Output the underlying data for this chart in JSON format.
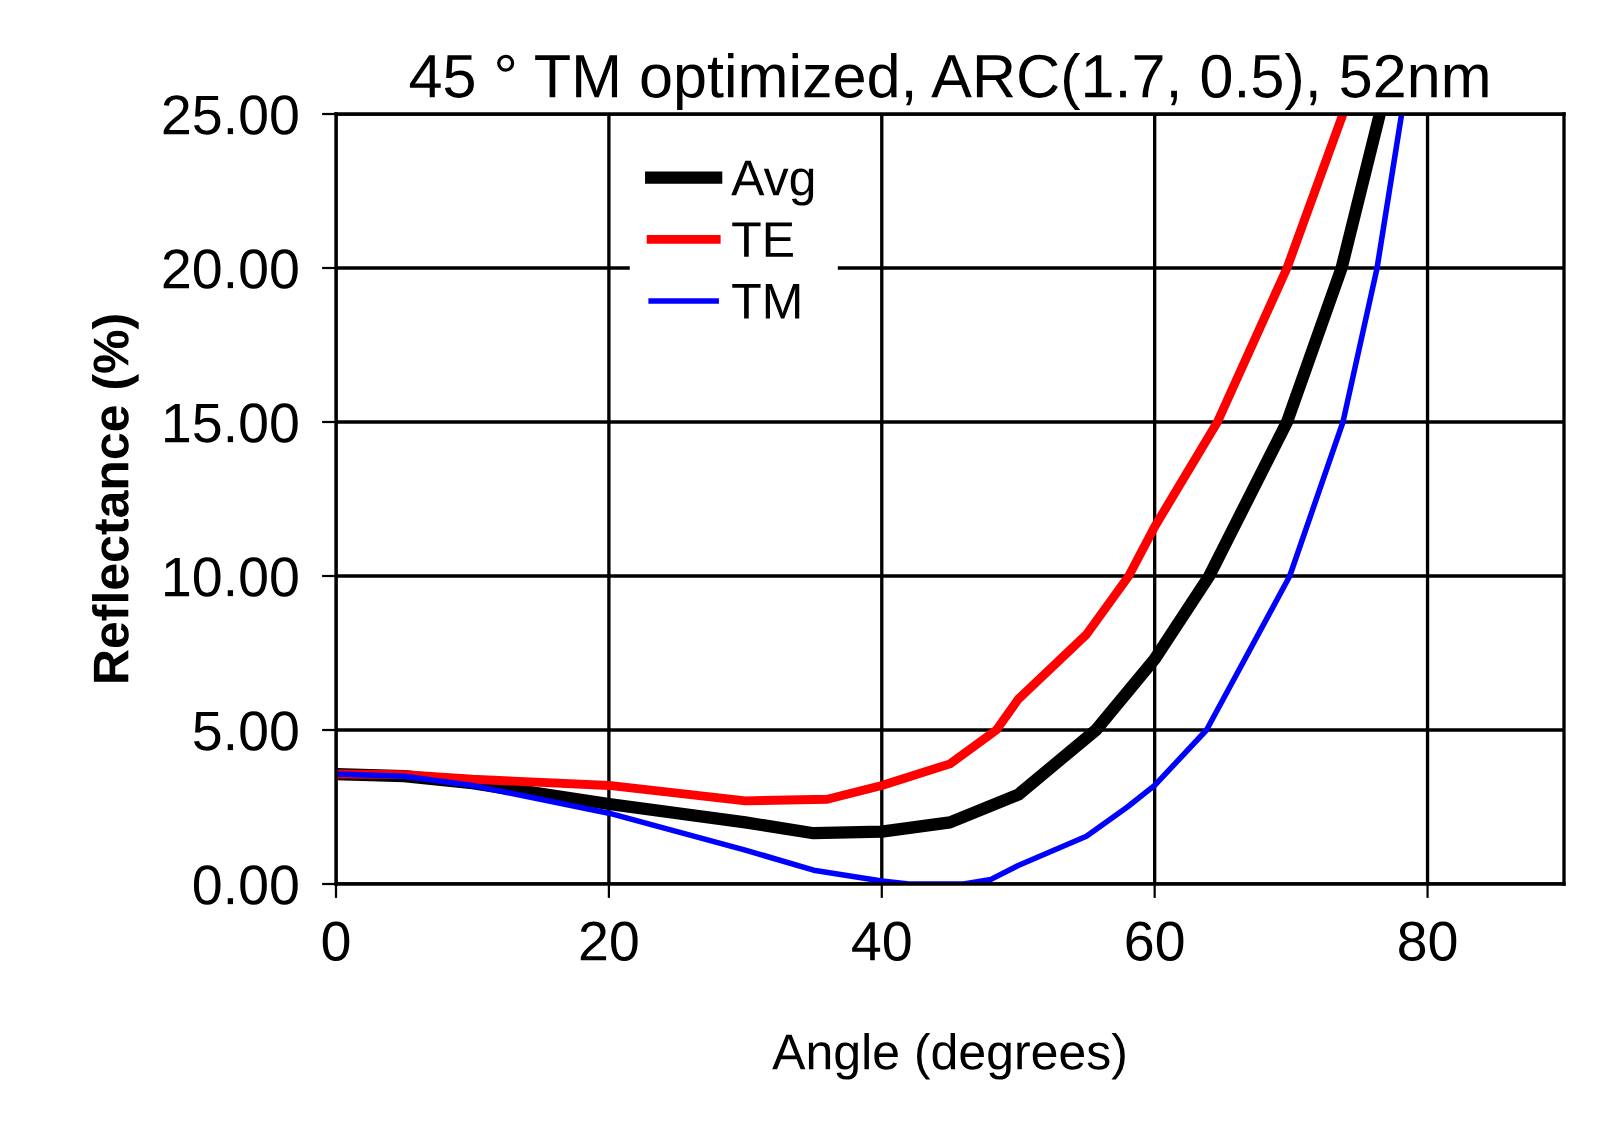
{
  "chart_data": {
    "type": "line",
    "title": "45 ° TM optimized, ARC(1.7, 0.5), 52nm",
    "xlabel": "Angle (degrees)",
    "ylabel": "Reflectance (%)",
    "xlim": [
      0,
      90
    ],
    "xticks": [
      0,
      20,
      40,
      60,
      80
    ],
    "ylim": [
      0,
      25
    ],
    "yticks": [
      {
        "value": 0,
        "label": "0.00"
      },
      {
        "value": 5,
        "label": "5.00"
      },
      {
        "value": 10,
        "label": "10.00"
      },
      {
        "value": 15,
        "label": "15.00"
      },
      {
        "value": 20,
        "label": "20.00"
      },
      {
        "value": 25,
        "label": "25.00"
      }
    ],
    "grid": true,
    "legend": "top",
    "marker": "none",
    "line_style": "solid",
    "series": [
      {
        "name": "Avg",
        "color": "#000000",
        "x": [
          0,
          5,
          10,
          20,
          30,
          35,
          40,
          45,
          50,
          55.7,
          60,
          64,
          69.7,
          73.7,
          76.5
        ],
        "values": [
          3.57,
          3.5,
          3.27,
          2.6,
          2.0,
          1.65,
          1.7,
          2.0,
          2.9,
          5,
          7.3,
          10,
          15,
          20,
          25
        ]
      },
      {
        "name": "TE",
        "color": "#ff0000",
        "x": [
          0,
          5,
          10,
          20,
          30,
          36,
          40,
          45,
          48.4,
          50,
          55,
          58.1,
          60,
          64.6,
          69.7,
          73.8
        ],
        "values": [
          3.57,
          3.55,
          3.4,
          3.2,
          2.7,
          2.75,
          3.2,
          3.9,
          5,
          6.0,
          8.1,
          10,
          11.6,
          15,
          20,
          25
        ]
      },
      {
        "name": "TM",
        "color": "#0000ff",
        "x": [
          0,
          5,
          10,
          20,
          30,
          35,
          40,
          42,
          46,
          48,
          50,
          55,
          58,
          60,
          63.8,
          69.9,
          73.8,
          76.3,
          78.1
        ],
        "values": [
          3.57,
          3.5,
          3.2,
          2.3,
          1.1,
          0.45,
          0.1,
          0,
          0,
          0.15,
          0.6,
          1.55,
          2.5,
          3.2,
          5,
          10,
          15,
          20,
          25
        ]
      }
    ]
  }
}
